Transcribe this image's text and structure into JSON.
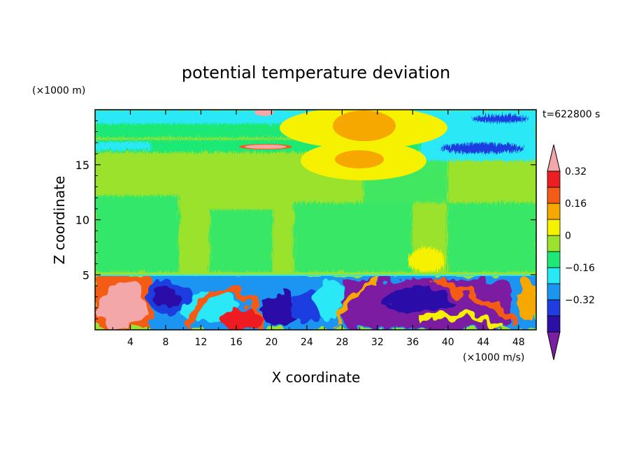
{
  "chart_data": {
    "type": "heatmap",
    "title": "potential temperature deviation",
    "xlabel": "X coordinate",
    "ylabel": "Z coordinate",
    "x_unit": "(×1000 m/s)",
    "y_unit": "(×1000 m)",
    "time_label": "t=622800 s",
    "xlim": [
      0,
      50
    ],
    "ylim": [
      0,
      20
    ],
    "x_ticks": [
      "4",
      "8",
      "12",
      "16",
      "20",
      "24",
      "28",
      "32",
      "36",
      "40",
      "44",
      "48"
    ],
    "y_ticks": [
      "5",
      "10",
      "15"
    ],
    "colorbar": {
      "labels": [
        "0.32",
        "0.16",
        "0",
        "−0.16",
        "−0.32"
      ],
      "levels": [
        -0.48,
        -0.4,
        -0.32,
        -0.24,
        -0.16,
        -0.08,
        0,
        0.08,
        0.16,
        0.24,
        0.32,
        0.4
      ],
      "colors": [
        "#7b1fa2",
        "#2b0fa8",
        "#1f3de0",
        "#1a95f2",
        "#29e8f6",
        "#1ee876",
        "#9be22c",
        "#f6f100",
        "#f7a800",
        "#f45b16",
        "#ee1d22",
        "#f4a7a8"
      ]
    },
    "regions": [
      {
        "x": [
          0,
          50
        ],
        "z": [
          0,
          5
        ],
        "level": "mixed_layer_turbulence"
      },
      {
        "x": [
          0,
          50
        ],
        "z": [
          5,
          15
        ],
        "level": "0 to 0.08"
      },
      {
        "x": [
          26,
          34
        ],
        "z": [
          14,
          19.5
        ],
        "level": "0.16 to 0.24"
      },
      {
        "x": [
          39,
          49
        ],
        "z": [
          16,
          17.5
        ],
        "level": "-0.32 to -0.16"
      },
      {
        "x": [
          0,
          7
        ],
        "z": [
          0,
          5
        ],
        "level": ">0.40"
      },
      {
        "x": [
          24,
          40
        ],
        "z": [
          0,
          5
        ],
        "level": "<-0.40"
      }
    ]
  }
}
